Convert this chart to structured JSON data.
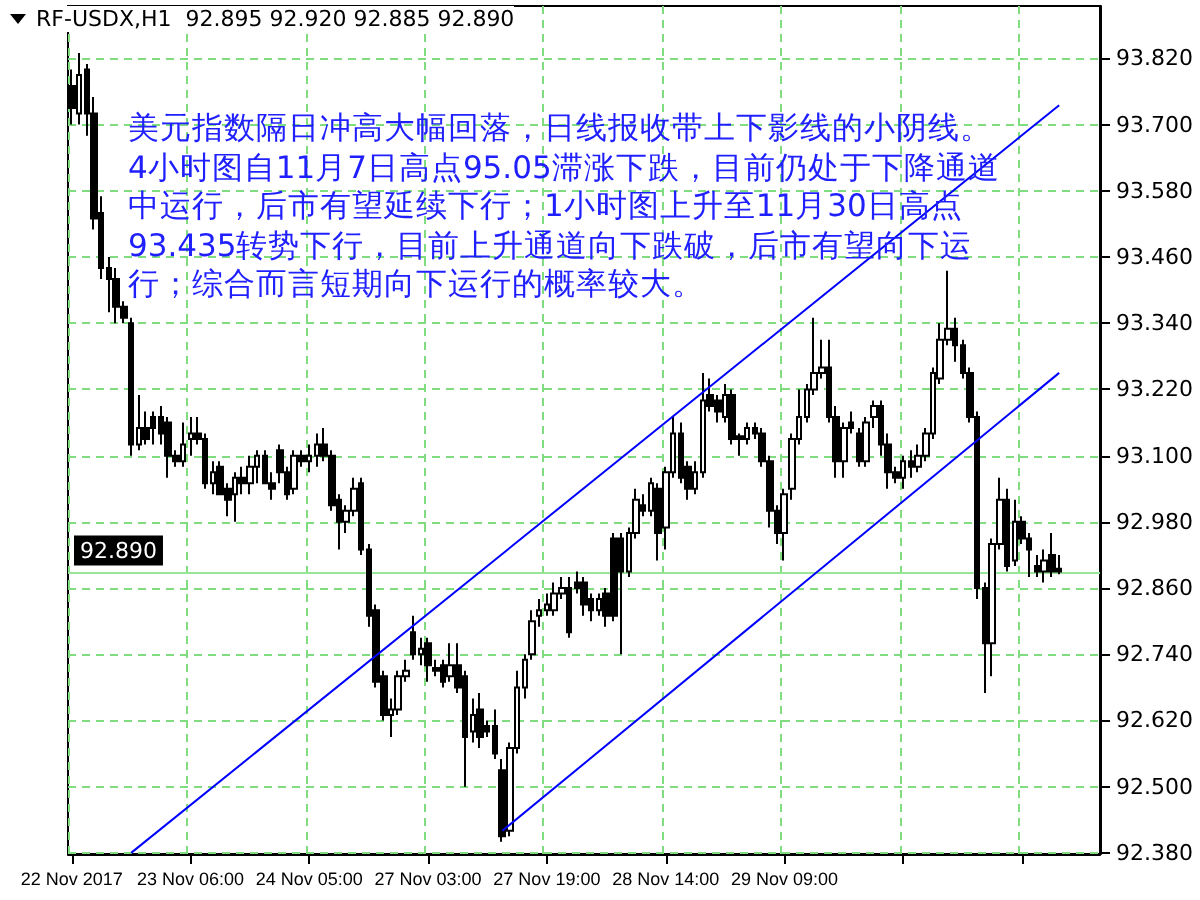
{
  "chart_data": {
    "type": "candlestick",
    "title": "RF-USDX,H1  92.895 92.920 92.885 92.890",
    "annotations": [
      "美元指数隔日冲高大幅回落，日线报收带上下影线的小阴线。4小时图自11月7日高点95.05滞涨下跌，目前仍处于下降通道中运行，后市有望延续下行；1小时图上升至11月30日高点93.435转势下行，目前上升通道向下跌破，后市有望向下运行；综合而言短期向下运行的概率较大。"
    ],
    "categories": [
      "22 Nov 2017",
      null,
      null,
      null,
      null,
      null,
      null,
      null,
      null,
      null,
      null,
      null,
      null,
      null,
      null,
      null,
      "23 Nov 06:00",
      null,
      null,
      null,
      null,
      null,
      null,
      null,
      null,
      null,
      null,
      null,
      null,
      null,
      null,
      null,
      "24 Nov 05:00",
      null,
      null,
      null,
      null,
      null,
      null,
      null,
      null,
      null,
      null,
      null,
      null,
      null,
      null,
      null,
      "27 Nov 03:00",
      null,
      null,
      null,
      null,
      null,
      null,
      null,
      null,
      null,
      null,
      null,
      null,
      null,
      null,
      null,
      "27 Nov 19:00",
      null,
      null,
      null,
      null,
      null,
      null,
      null,
      null,
      null,
      null,
      null,
      null,
      null,
      null,
      null,
      "28 Nov 14:00",
      null,
      null,
      null,
      null,
      null,
      null,
      null,
      null,
      null,
      null,
      null,
      null,
      null,
      null,
      null,
      "29 Nov 09:00",
      null,
      null,
      null,
      null,
      null,
      null,
      null,
      null,
      null,
      null,
      null,
      null,
      null,
      null,
      null,
      null,
      null,
      null,
      null,
      null,
      null,
      null,
      null,
      null,
      null,
      null,
      null,
      null,
      null,
      null,
      null,
      null,
      null,
      null,
      null,
      null,
      null
    ],
    "ohlc": [
      [
        93.77,
        93.8,
        93.7,
        93.73
      ],
      [
        93.72,
        93.83,
        93.7,
        93.79
      ],
      [
        93.8,
        93.81,
        93.68,
        93.72
      ],
      [
        93.72,
        93.75,
        93.51,
        93.53
      ],
      [
        93.54,
        93.57,
        93.42,
        93.44
      ],
      [
        93.44,
        93.46,
        93.36,
        93.42
      ],
      [
        93.42,
        93.44,
        93.34,
        93.37
      ],
      [
        93.37,
        93.38,
        93.34,
        93.35
      ],
      [
        93.34,
        93.35,
        93.1,
        93.12
      ],
      [
        93.12,
        93.21,
        93.11,
        93.15
      ],
      [
        93.15,
        93.18,
        93.12,
        93.13
      ],
      [
        93.17,
        93.18,
        93.12,
        93.15
      ],
      [
        93.17,
        93.19,
        93.12,
        93.14
      ],
      [
        93.16,
        93.17,
        93.06,
        93.1
      ],
      [
        93.1,
        93.11,
        93.08,
        93.09
      ],
      [
        93.09,
        93.16,
        93.08,
        93.12
      ],
      [
        93.13,
        93.17,
        93.1,
        93.14
      ],
      [
        93.14,
        93.17,
        93.12,
        93.13
      ],
      [
        93.13,
        93.14,
        93.04,
        93.05
      ],
      [
        93.05,
        93.09,
        93.03,
        93.07
      ],
      [
        93.08,
        93.09,
        93.03,
        93.03
      ],
      [
        93.04,
        93.05,
        92.99,
        93.02
      ],
      [
        93.03,
        93.07,
        92.98,
        93.06
      ],
      [
        93.06,
        93.08,
        93.03,
        93.05
      ],
      [
        93.05,
        93.1,
        93.03,
        93.08
      ],
      [
        93.08,
        93.11,
        93.05,
        93.1
      ],
      [
        93.1,
        93.11,
        93.05,
        93.05
      ],
      [
        93.05,
        93.07,
        93.02,
        93.04
      ],
      [
        93.11,
        93.12,
        93.05,
        93.07
      ],
      [
        93.07,
        93.08,
        93.02,
        93.03
      ],
      [
        93.04,
        93.11,
        93.03,
        93.1
      ],
      [
        93.1,
        93.11,
        93.08,
        93.09
      ],
      [
        93.09,
        93.12,
        93.07,
        93.1
      ],
      [
        93.1,
        93.14,
        93.08,
        93.12
      ],
      [
        93.12,
        93.15,
        93.09,
        93.1
      ],
      [
        93.1,
        93.11,
        93.0,
        93.01
      ],
      [
        93.02,
        93.03,
        92.93,
        92.98
      ],
      [
        92.98,
        93.01,
        92.96,
        93.0
      ],
      [
        93.0,
        93.06,
        92.99,
        93.04
      ],
      [
        93.05,
        93.06,
        92.92,
        92.93
      ],
      [
        92.93,
        92.94,
        92.79,
        92.81
      ],
      [
        92.82,
        92.83,
        92.68,
        92.69
      ],
      [
        92.7,
        92.71,
        92.62,
        92.63
      ],
      [
        92.63,
        92.66,
        92.59,
        92.64
      ],
      [
        92.64,
        92.71,
        92.63,
        92.7
      ],
      [
        92.7,
        92.73,
        92.69,
        92.71
      ],
      [
        92.78,
        92.81,
        92.73,
        92.74
      ],
      [
        92.74,
        92.77,
        92.72,
        92.75
      ],
      [
        92.76,
        92.77,
        92.69,
        92.72
      ],
      [
        92.715,
        92.73,
        92.7,
        92.71
      ],
      [
        92.72,
        92.73,
        92.68,
        92.69
      ],
      [
        92.7,
        92.76,
        92.69,
        92.72
      ],
      [
        92.72,
        92.76,
        92.67,
        92.68
      ],
      [
        92.7,
        92.71,
        92.5,
        92.59
      ],
      [
        92.6,
        92.66,
        92.58,
        92.63
      ],
      [
        92.64,
        92.67,
        92.57,
        92.59
      ],
      [
        92.61,
        92.62,
        92.59,
        92.6
      ],
      [
        92.61,
        92.64,
        92.55,
        92.56
      ],
      [
        92.53,
        92.55,
        92.4,
        92.41
      ],
      [
        92.42,
        92.58,
        92.41,
        92.57
      ],
      [
        92.57,
        92.71,
        92.56,
        92.68
      ],
      [
        92.68,
        92.74,
        92.66,
        92.73
      ],
      [
        92.74,
        92.82,
        92.73,
        92.8
      ],
      [
        92.81,
        92.84,
        92.79,
        92.82
      ],
      [
        92.82,
        92.85,
        92.81,
        92.83
      ],
      [
        92.82,
        92.87,
        92.81,
        92.85
      ],
      [
        92.85,
        92.88,
        92.84,
        92.86
      ],
      [
        92.86,
        92.88,
        92.77,
        92.78
      ],
      [
        92.87,
        92.89,
        92.85,
        92.86
      ],
      [
        92.87,
        92.88,
        92.81,
        92.83
      ],
      [
        92.84,
        92.85,
        92.8,
        92.82
      ],
      [
        92.82,
        92.85,
        92.81,
        92.84
      ],
      [
        92.85,
        92.86,
        92.79,
        92.81
      ],
      [
        92.95,
        92.96,
        92.8,
        92.81
      ],
      [
        92.95,
        92.96,
        92.74,
        92.89
      ],
      [
        92.89,
        92.97,
        92.88,
        92.96
      ],
      [
        92.96,
        93.04,
        92.95,
        93.02
      ],
      [
        93.01,
        93.03,
        92.99,
        93.0
      ],
      [
        93.0,
        93.06,
        92.99,
        93.05
      ],
      [
        93.04,
        93.05,
        92.91,
        92.96
      ],
      [
        92.97,
        93.08,
        92.93,
        93.07
      ],
      [
        93.07,
        93.17,
        93.06,
        93.14
      ],
      [
        93.14,
        93.16,
        93.05,
        93.06
      ],
      [
        93.08,
        93.09,
        93.02,
        93.04
      ],
      [
        93.04,
        93.09,
        93.03,
        93.07
      ],
      [
        93.07,
        93.25,
        93.06,
        93.2
      ],
      [
        93.21,
        93.24,
        93.18,
        93.19
      ],
      [
        93.2,
        93.21,
        93.16,
        93.18
      ],
      [
        93.17,
        93.23,
        93.16,
        93.21
      ],
      [
        93.21,
        93.22,
        93.12,
        93.13
      ],
      [
        93.135,
        93.14,
        93.1,
        93.13
      ],
      [
        93.13,
        93.16,
        93.12,
        93.15
      ],
      [
        93.15,
        93.16,
        93.13,
        93.14
      ],
      [
        93.14,
        93.15,
        93.08,
        93.09
      ],
      [
        93.09,
        93.1,
        92.97,
        93.0
      ],
      [
        93.0,
        93.01,
        92.94,
        92.96
      ],
      [
        92.96,
        93.04,
        92.91,
        93.03
      ],
      [
        93.04,
        93.14,
        93.02,
        93.13
      ],
      [
        93.13,
        93.22,
        93.12,
        93.17
      ],
      [
        93.17,
        93.23,
        93.16,
        93.22
      ],
      [
        93.22,
        93.35,
        93.21,
        93.25
      ],
      [
        93.25,
        93.31,
        93.24,
        93.26
      ],
      [
        93.26,
        93.31,
        93.16,
        93.17
      ],
      [
        93.17,
        93.19,
        93.06,
        93.09
      ],
      [
        93.09,
        93.16,
        93.06,
        93.15
      ],
      [
        93.16,
        93.18,
        93.14,
        93.15
      ],
      [
        93.14,
        93.15,
        93.08,
        93.09
      ],
      [
        93.09,
        93.17,
        93.08,
        93.16
      ],
      [
        93.17,
        93.2,
        93.15,
        93.19
      ],
      [
        93.19,
        93.2,
        93.1,
        93.12
      ],
      [
        93.12,
        93.14,
        93.04,
        93.07
      ],
      [
        93.07,
        93.08,
        93.05,
        93.06
      ],
      [
        93.06,
        93.1,
        93.04,
        93.09
      ],
      [
        93.09,
        93.11,
        93.06,
        93.08
      ],
      [
        93.08,
        93.12,
        93.07,
        93.1
      ],
      [
        93.1,
        93.15,
        93.09,
        93.14
      ],
      [
        93.14,
        93.26,
        93.13,
        93.25
      ],
      [
        93.24,
        93.34,
        93.23,
        93.31
      ],
      [
        93.31,
        93.435,
        93.3,
        93.33
      ],
      [
        93.33,
        93.35,
        93.27,
        93.3
      ],
      [
        93.3,
        93.31,
        93.24,
        93.25
      ],
      [
        93.25,
        93.26,
        93.16,
        93.17
      ],
      [
        93.17,
        93.18,
        92.84,
        92.86
      ],
      [
        92.86,
        92.87,
        92.67,
        92.76
      ],
      [
        92.76,
        92.95,
        92.7,
        92.94
      ],
      [
        92.94,
        93.06,
        92.93,
        93.02
      ],
      [
        93.02,
        93.04,
        92.89,
        92.9
      ],
      [
        92.91,
        93.02,
        92.9,
        92.98
      ],
      [
        92.98,
        92.99,
        92.94,
        92.95
      ],
      [
        92.95,
        92.96,
        92.88,
        92.93
      ],
      [
        92.9,
        92.92,
        92.88,
        92.89
      ],
      [
        92.89,
        92.93,
        92.87,
        92.91
      ],
      [
        92.92,
        92.96,
        92.88,
        92.89
      ],
      [
        92.895,
        92.92,
        92.885,
        92.89
      ]
    ],
    "series": [
      {
        "type": "line",
        "color": "#0000ff",
        "values": [
          null,
          null,
          null,
          null,
          null,
          null,
          null,
          null,
          92.38,
          null,
          null,
          null,
          null,
          null,
          null,
          null,
          null,
          null,
          null,
          null,
          null,
          null,
          null,
          null,
          null,
          null,
          null,
          null,
          null,
          null,
          null,
          null,
          null,
          null,
          null,
          null,
          null,
          null,
          null,
          null,
          null,
          null,
          null,
          null,
          null,
          null,
          null,
          null,
          null,
          null,
          null,
          null,
          null,
          null,
          null,
          null,
          null,
          null,
          null,
          null,
          null,
          null,
          null,
          null,
          null,
          null,
          null,
          null,
          null,
          null,
          null,
          null,
          null,
          null,
          null,
          null,
          null,
          null,
          null,
          null,
          null,
          null,
          null,
          null,
          null,
          null,
          null,
          null,
          null,
          null,
          null,
          null,
          null,
          null,
          null,
          null,
          null,
          null,
          null,
          null,
          null,
          null,
          null,
          null,
          null,
          null,
          null,
          null,
          null,
          null,
          null,
          null,
          null,
          null,
          null,
          null,
          null,
          null,
          null,
          null,
          null,
          null,
          null,
          null,
          null,
          null,
          null,
          null,
          null,
          null,
          null,
          null,
          null,
          93.735
        ]
      },
      {
        "type": "line",
        "color": "#0000ff",
        "values": [
          null,
          null,
          null,
          null,
          null,
          null,
          null,
          null,
          null,
          null,
          null,
          null,
          null,
          null,
          null,
          null,
          null,
          null,
          null,
          null,
          null,
          null,
          null,
          null,
          null,
          null,
          null,
          null,
          null,
          null,
          null,
          null,
          null,
          null,
          null,
          null,
          null,
          null,
          null,
          null,
          null,
          null,
          null,
          null,
          null,
          null,
          null,
          null,
          null,
          null,
          null,
          null,
          null,
          null,
          null,
          null,
          null,
          null,
          92.42,
          null,
          null,
          null,
          null,
          null,
          null,
          null,
          null,
          null,
          null,
          null,
          null,
          null,
          null,
          null,
          null,
          null,
          null,
          null,
          null,
          null,
          null,
          null,
          null,
          null,
          null,
          null,
          null,
          null,
          null,
          null,
          null,
          null,
          null,
          null,
          null,
          null,
          null,
          null,
          null,
          null,
          null,
          null,
          null,
          null,
          null,
          null,
          null,
          null,
          null,
          null,
          null,
          null,
          null,
          null,
          null,
          null,
          null,
          null,
          null,
          null,
          null,
          null,
          null,
          null,
          null,
          null,
          null,
          null,
          null,
          null,
          null,
          null,
          null,
          93.25
        ]
      }
    ],
    "ylim": [
      92.378,
      93.915
    ],
    "yticks": [
      {
        "value": 92.38,
        "label": "92.380"
      },
      {
        "value": 92.5,
        "label": "92.500"
      },
      {
        "value": 92.62,
        "label": "92.620"
      },
      {
        "value": 92.74,
        "label": "92.740"
      },
      {
        "value": 92.86,
        "label": "92.860"
      },
      {
        "value": 92.98,
        "label": "92.980"
      },
      {
        "value": 93.1,
        "label": "93.100"
      },
      {
        "value": 93.22,
        "label": "93.220"
      },
      {
        "value": 93.34,
        "label": "93.340"
      },
      {
        "value": 93.46,
        "label": "93.460"
      },
      {
        "value": 93.58,
        "label": "93.580"
      },
      {
        "value": 93.7,
        "label": "93.700"
      },
      {
        "value": 93.82,
        "label": "93.820"
      }
    ],
    "ref_lines": [
      {
        "axis": "y",
        "value": 92.89,
        "label": "92.890",
        "color": "#99e699",
        "line_style": "solid"
      }
    ],
    "grid": true
  }
}
